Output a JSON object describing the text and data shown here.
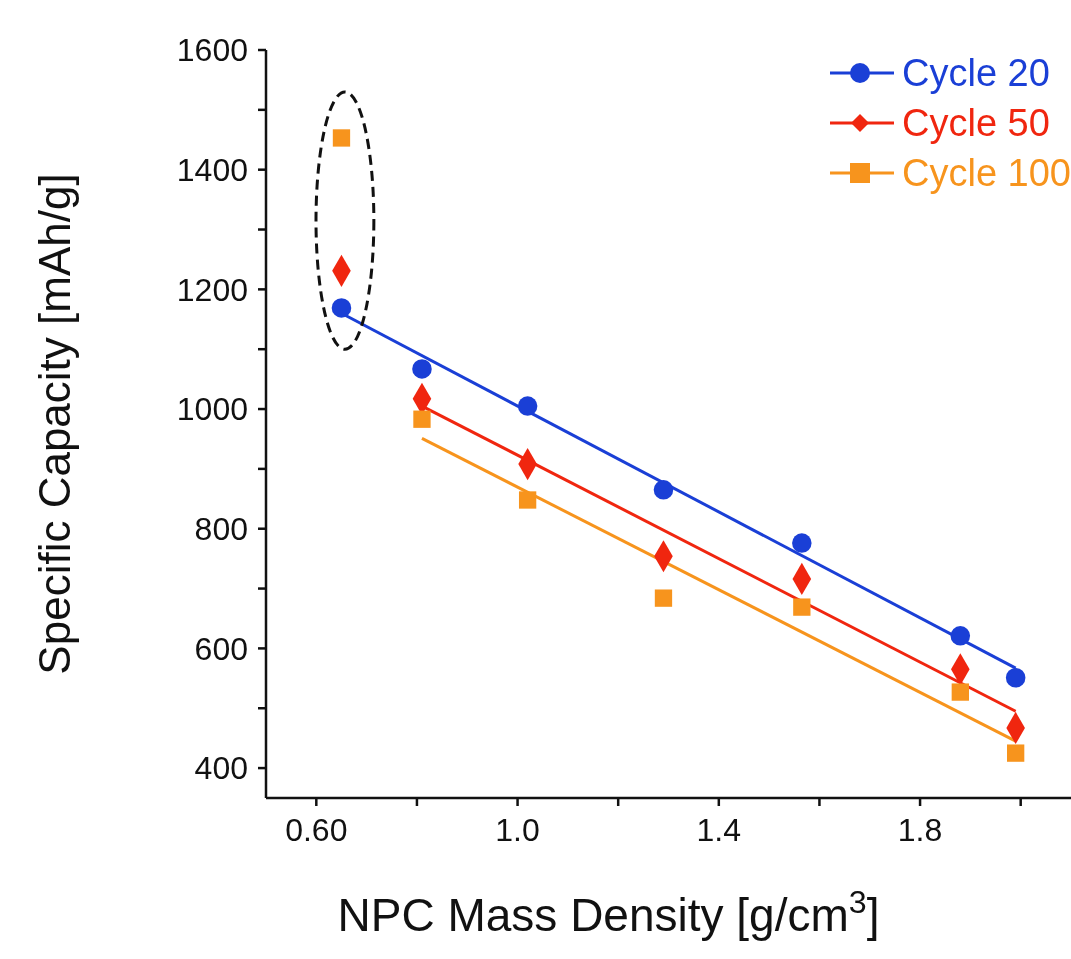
{
  "chart_data": {
    "type": "scatter",
    "xlabel": "NPC Mass Density [g/cm$^{3}$]",
    "ylabel": "Specific Capacity [mAh/g]",
    "xlim": [
      0.5,
      2.1
    ],
    "ylim": [
      350,
      1600
    ],
    "xticks": [
      {
        "value": 0.6,
        "label": "0.60"
      },
      {
        "value": 0.8,
        "label": null
      },
      {
        "value": 1.0,
        "label": "1.0"
      },
      {
        "value": 1.2,
        "label": null
      },
      {
        "value": 1.4,
        "label": "1.4"
      },
      {
        "value": 1.6,
        "label": null
      },
      {
        "value": 1.8,
        "label": "1.8"
      },
      {
        "value": 2.0,
        "label": null
      }
    ],
    "yticks": [
      400,
      {
        "value": 500,
        "label": null
      },
      600,
      {
        "value": 700,
        "label": null
      },
      800,
      {
        "value": 900,
        "label": null
      },
      1000,
      {
        "value": 1100,
        "label": null
      },
      1200,
      {
        "value": 1300,
        "label": null
      },
      1400,
      {
        "value": 1500,
        "label": null
      },
      1600
    ],
    "grid": false,
    "legend": "top right",
    "series": [
      {
        "name": "Cycle 20",
        "type": "scatter",
        "marker": "circle",
        "color": "#1a3fd6",
        "x": [
          0.65,
          0.81,
          1.02,
          1.29,
          1.565,
          1.88,
          1.99
        ],
        "values": [
          1169,
          1067,
          1005,
          865,
          776,
          621,
          551
        ]
      },
      {
        "name": "Cycle 50",
        "type": "scatter",
        "marker": "diamond",
        "color": "#f0260f",
        "x": [
          0.65,
          0.81,
          1.02,
          1.29,
          1.565,
          1.88,
          1.99
        ],
        "values": [
          1231,
          1017,
          908,
          754,
          716,
          565,
          467
        ]
      },
      {
        "name": "Cycle 100",
        "type": "scatter",
        "marker": "square",
        "color": "#f7941d",
        "x": [
          0.65,
          0.81,
          1.02,
          1.29,
          1.565,
          1.88,
          1.99
        ],
        "values": [
          1453,
          983,
          848,
          684,
          669,
          527,
          425
        ]
      },
      {
        "type": "line",
        "color": "#1a3fd6",
        "x": [
          0.65,
          1.99
        ],
        "values": [
          1160,
          567
        ]
      },
      {
        "type": "line",
        "color": "#f0260f",
        "x": [
          0.81,
          1.99
        ],
        "values": [
          1005,
          495
        ]
      },
      {
        "type": "line",
        "color": "#f7941d",
        "x": [
          0.81,
          1.99
        ],
        "values": [
          951,
          445
        ]
      }
    ]
  }
}
